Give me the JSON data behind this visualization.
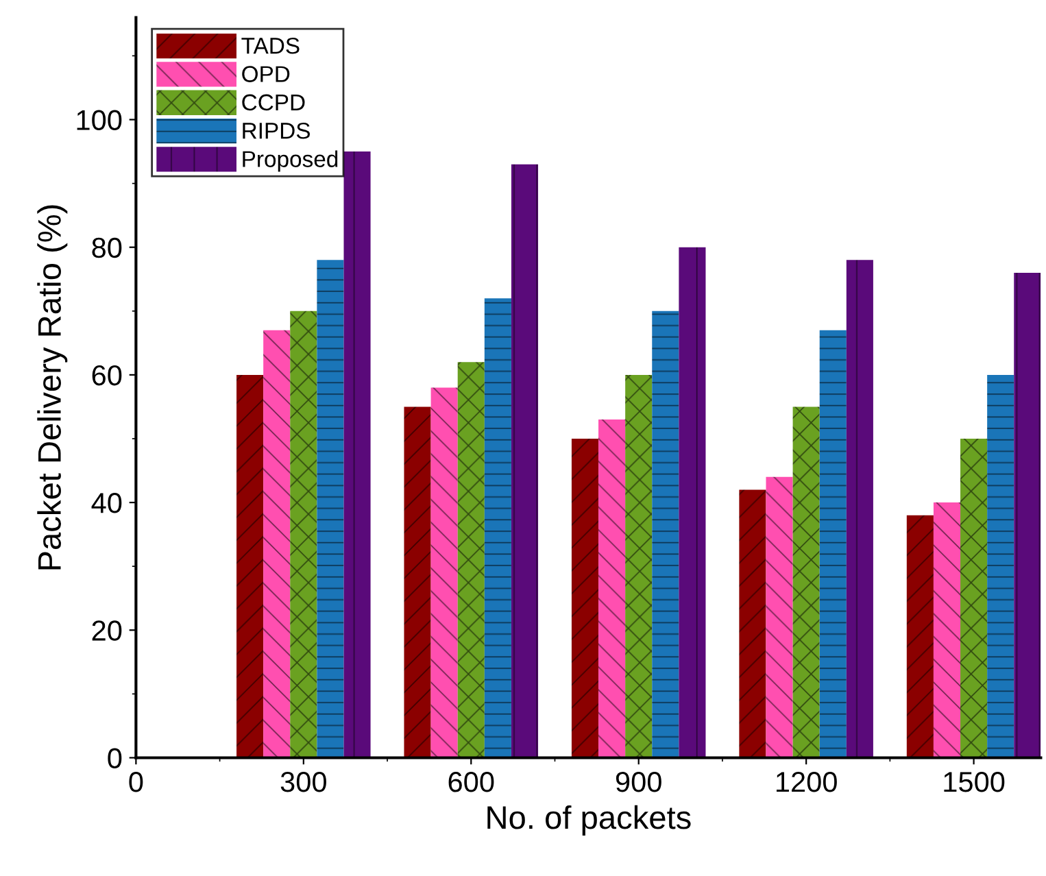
{
  "chart_data": {
    "type": "bar",
    "xlabel": "No. of packets",
    "ylabel": "Packet Delivery Ratio (%)",
    "x": [
      300,
      600,
      900,
      1200,
      1500
    ],
    "series": [
      {
        "name": "TADS",
        "color": "#8b0000",
        "values": [
          60,
          55,
          50,
          42,
          38
        ]
      },
      {
        "name": "OPD",
        "color": "#ff4fb0",
        "values": [
          67,
          58,
          53,
          44,
          40
        ]
      },
      {
        "name": "CCPD",
        "color": "#6aa121",
        "values": [
          70,
          62,
          60,
          55,
          50
        ]
      },
      {
        "name": "RIPDS",
        "color": "#1a75b8",
        "values": [
          78,
          72,
          70,
          67,
          60
        ]
      },
      {
        "name": "Proposed",
        "color": "#5a0a7a",
        "values": [
          95,
          93,
          80,
          78,
          76
        ]
      }
    ],
    "xlim": [
      0,
      1620
    ],
    "xticks": [
      0,
      300,
      600,
      900,
      1200,
      1500
    ],
    "ylim": [
      0,
      116
    ],
    "yticks": [
      0,
      20,
      40,
      60,
      80,
      100
    ],
    "legend": "top left",
    "grid": false
  }
}
